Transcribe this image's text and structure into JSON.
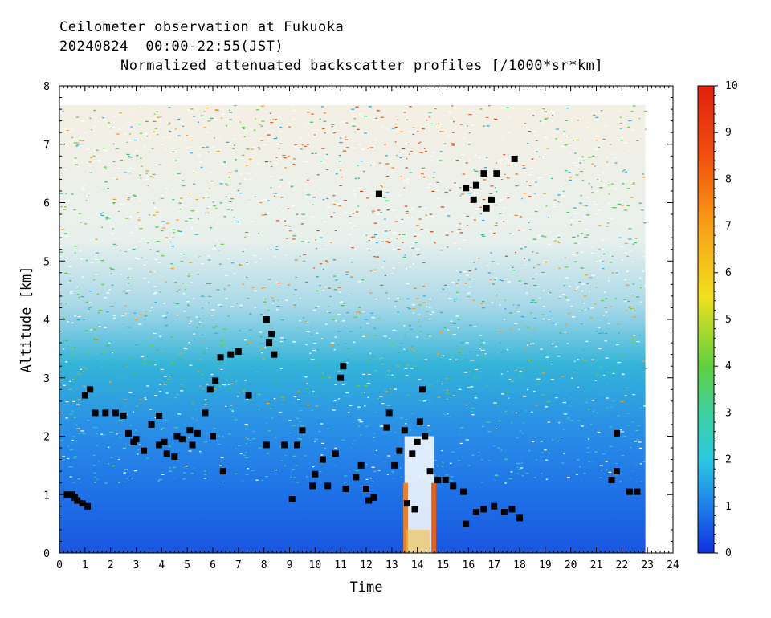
{
  "header": {
    "line1": "Ceilometer observation at Fukuoka",
    "line2": "20240824  00:00-22:55(JST)",
    "line3": "Normalized attenuated backscatter profiles [/1000*sr*km]"
  },
  "chart_data": {
    "type": "heatmap",
    "title": "Normalized attenuated backscatter profiles [/1000*sr*km]",
    "xlabel": "Time",
    "ylabel": "Altitude [km]",
    "xlim": [
      0,
      24
    ],
    "ylim": [
      0,
      8
    ],
    "x_ticks": [
      "0",
      "1",
      "2",
      "3",
      "4",
      "5",
      "6",
      "7",
      "8",
      "9",
      "10",
      "11",
      "12",
      "13",
      "14",
      "15",
      "16",
      "17",
      "18",
      "19",
      "20",
      "21",
      "22",
      "23",
      "24"
    ],
    "y_ticks": [
      "0",
      "1",
      "2",
      "3",
      "4",
      "5",
      "6",
      "7",
      "8"
    ],
    "data_time_range": [
      0,
      22.92
    ],
    "data_max_altitude": 7.67,
    "colorbar": {
      "range": [
        0,
        10
      ],
      "ticks": [
        "0",
        "1",
        "2",
        "3",
        "4",
        "5",
        "6",
        "7",
        "8",
        "9",
        "10"
      ],
      "colors": [
        "#1030e0",
        "#1f7fe8",
        "#2ec8e0",
        "#40d0a0",
        "#60d040",
        "#f0e020",
        "#f8a018",
        "#f05010",
        "#e02010"
      ]
    },
    "cloud_base_detections": [
      {
        "x": 0.3,
        "y": 1.0
      },
      {
        "x": 0.5,
        "y": 1.0
      },
      {
        "x": 0.7,
        "y": 0.9
      },
      {
        "x": 0.9,
        "y": 0.85
      },
      {
        "x": 1.1,
        "y": 0.8
      },
      {
        "x": 1.0,
        "y": 2.7
      },
      {
        "x": 1.2,
        "y": 2.8
      },
      {
        "x": 1.4,
        "y": 2.4
      },
      {
        "x": 1.8,
        "y": 2.4
      },
      {
        "x": 2.2,
        "y": 2.4
      },
      {
        "x": 2.5,
        "y": 2.35
      },
      {
        "x": 2.7,
        "y": 2.05
      },
      {
        "x": 3.0,
        "y": 1.95
      },
      {
        "x": 3.3,
        "y": 1.75
      },
      {
        "x": 3.6,
        "y": 2.2
      },
      {
        "x": 3.9,
        "y": 1.85
      },
      {
        "x": 4.2,
        "y": 1.7
      },
      {
        "x": 4.5,
        "y": 1.65
      },
      {
        "x": 4.8,
        "y": 1.95
      },
      {
        "x": 5.1,
        "y": 2.1
      },
      {
        "x": 5.4,
        "y": 2.05
      },
      {
        "x": 5.7,
        "y": 2.4
      },
      {
        "x": 6.0,
        "y": 2.0
      },
      {
        "x": 5.9,
        "y": 2.8
      },
      {
        "x": 6.3,
        "y": 3.35
      },
      {
        "x": 6.7,
        "y": 3.4
      },
      {
        "x": 7.0,
        "y": 3.45
      },
      {
        "x": 7.4,
        "y": 2.7
      },
      {
        "x": 6.4,
        "y": 1.4
      },
      {
        "x": 8.1,
        "y": 4.0
      },
      {
        "x": 8.2,
        "y": 3.6
      },
      {
        "x": 8.4,
        "y": 3.4
      },
      {
        "x": 8.1,
        "y": 1.85
      },
      {
        "x": 8.8,
        "y": 1.85
      },
      {
        "x": 9.3,
        "y": 1.85
      },
      {
        "x": 9.5,
        "y": 2.1
      },
      {
        "x": 9.1,
        "y": 0.92
      },
      {
        "x": 10.0,
        "y": 1.35
      },
      {
        "x": 10.3,
        "y": 1.6
      },
      {
        "x": 10.5,
        "y": 1.15
      },
      {
        "x": 10.8,
        "y": 1.7
      },
      {
        "x": 11.0,
        "y": 3.0
      },
      {
        "x": 11.1,
        "y": 3.2
      },
      {
        "x": 11.2,
        "y": 1.1
      },
      {
        "x": 11.6,
        "y": 1.3
      },
      {
        "x": 11.8,
        "y": 1.5
      },
      {
        "x": 12.0,
        "y": 1.1
      },
      {
        "x": 12.1,
        "y": 0.9
      },
      {
        "x": 12.5,
        "y": 6.15
      },
      {
        "x": 12.8,
        "y": 2.15
      },
      {
        "x": 12.9,
        "y": 2.4
      },
      {
        "x": 13.1,
        "y": 1.5
      },
      {
        "x": 13.3,
        "y": 1.75
      },
      {
        "x": 13.5,
        "y": 2.1
      },
      {
        "x": 13.6,
        "y": 0.85
      },
      {
        "x": 13.8,
        "y": 1.7
      },
      {
        "x": 13.9,
        "y": 0.75
      },
      {
        "x": 14.1,
        "y": 2.25
      },
      {
        "x": 14.2,
        "y": 2.8
      },
      {
        "x": 14.3,
        "y": 2.0
      },
      {
        "x": 14.5,
        "y": 1.4
      },
      {
        "x": 14.8,
        "y": 1.25
      },
      {
        "x": 15.1,
        "y": 1.25
      },
      {
        "x": 15.4,
        "y": 1.15
      },
      {
        "x": 15.8,
        "y": 1.05
      },
      {
        "x": 15.9,
        "y": 0.5
      },
      {
        "x": 16.2,
        "y": 6.05
      },
      {
        "x": 16.3,
        "y": 6.3
      },
      {
        "x": 16.6,
        "y": 6.5
      },
      {
        "x": 16.7,
        "y": 5.9
      },
      {
        "x": 16.9,
        "y": 6.05
      },
      {
        "x": 17.1,
        "y": 6.5
      },
      {
        "x": 16.3,
        "y": 0.7
      },
      {
        "x": 16.6,
        "y": 0.75
      },
      {
        "x": 17.0,
        "y": 0.8
      },
      {
        "x": 17.4,
        "y": 0.7
      },
      {
        "x": 17.7,
        "y": 0.75
      },
      {
        "x": 18.0,
        "y": 0.6
      },
      {
        "x": 17.8,
        "y": 6.75
      },
      {
        "x": 15.9,
        "y": 6.25
      },
      {
        "x": 21.6,
        "y": 1.25
      },
      {
        "x": 21.8,
        "y": 1.4
      },
      {
        "x": 21.8,
        "y": 2.05
      },
      {
        "x": 22.3,
        "y": 1.05
      },
      {
        "x": 22.6,
        "y": 1.05
      },
      {
        "x": 0.6,
        "y": 0.95
      },
      {
        "x": 2.9,
        "y": 1.9
      },
      {
        "x": 4.1,
        "y": 1.9
      },
      {
        "x": 5.2,
        "y": 1.85
      },
      {
        "x": 9.9,
        "y": 1.15
      },
      {
        "x": 12.3,
        "y": 0.95
      },
      {
        "x": 14.0,
        "y": 1.9
      },
      {
        "x": 3.9,
        "y": 2.35
      },
      {
        "x": 4.6,
        "y": 2.0
      },
      {
        "x": 6.1,
        "y": 2.95
      },
      {
        "x": 8.3,
        "y": 3.75
      }
    ]
  }
}
